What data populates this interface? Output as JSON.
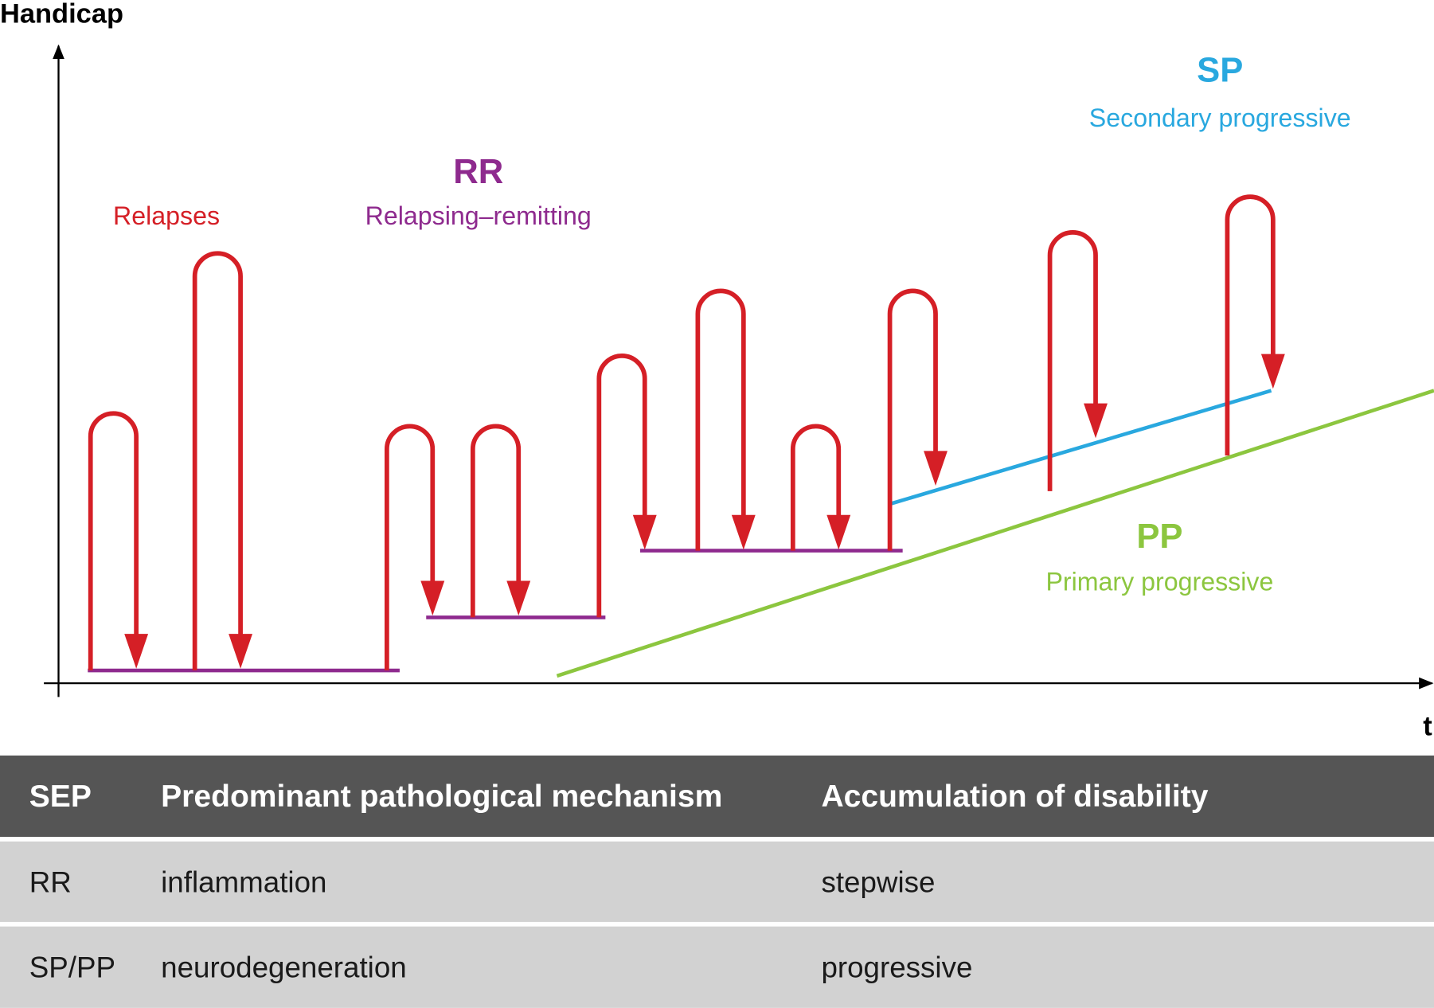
{
  "axes": {
    "y_label": "Handicap",
    "x_label": "t"
  },
  "labels": {
    "relapses": "Relapses",
    "rr": {
      "abbr": "RR",
      "name": "Relapsing–remitting"
    },
    "sp": {
      "abbr": "SP",
      "name": "Secondary progressive"
    },
    "pp": {
      "abbr": "PP",
      "name": "Primary progressive"
    }
  },
  "table": {
    "header": [
      "SEP",
      "Predominant pathological mechanism",
      "Accumulation of disability"
    ],
    "rows": [
      [
        "RR",
        "inflammation",
        "stepwise"
      ],
      [
        "SP/PP",
        "neurodegeneration",
        "progressive"
      ]
    ]
  }
}
